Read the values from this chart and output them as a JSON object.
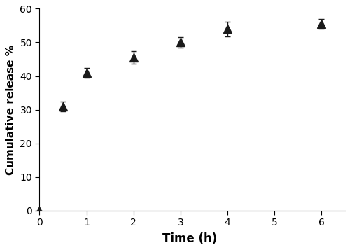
{
  "x": [
    0,
    0.5,
    1,
    2,
    3,
    4,
    6
  ],
  "y": [
    0,
    31,
    41,
    45.5,
    50,
    54,
    55.5
  ],
  "yerr": [
    0,
    1.5,
    1.5,
    1.8,
    1.5,
    2.2,
    1.5
  ],
  "xlabel": "Time (h)",
  "ylabel": "Cumulative release %",
  "xlim": [
    -0.1,
    6.5
  ],
  "ylim": [
    0,
    60
  ],
  "xticks": [
    0,
    1,
    2,
    3,
    4,
    5,
    6
  ],
  "yticks": [
    0,
    10,
    20,
    30,
    40,
    50,
    60
  ],
  "line_color": "#1a1a1a",
  "marker_color": "#1a1a1a",
  "marker": "^",
  "markersize": 8,
  "linewidth": 1.3,
  "xlabel_fontsize": 12,
  "ylabel_fontsize": 11,
  "tick_fontsize": 10,
  "xlabel_fontweight": "bold",
  "ylabel_fontweight": "bold",
  "background_color": "#ffffff",
  "capsize": 3
}
